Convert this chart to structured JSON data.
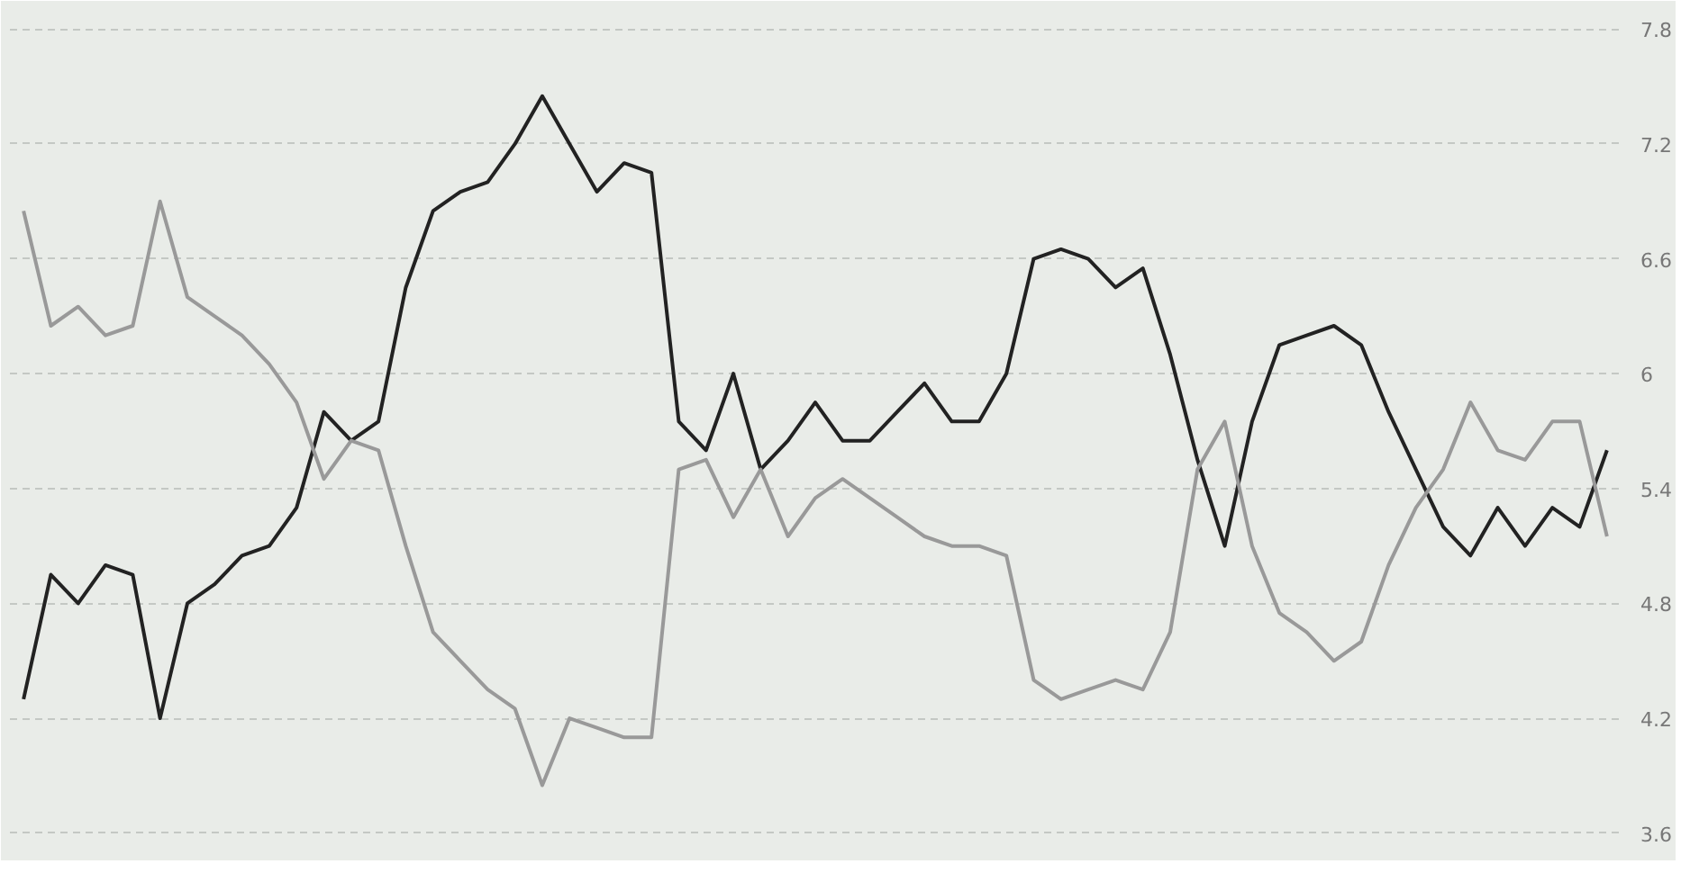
{
  "chart_data": {
    "type": "line",
    "categories": [
      null,
      null,
      null,
      null,
      null,
      null,
      null,
      null,
      null,
      null,
      null,
      null,
      null,
      null,
      null,
      null,
      null,
      null,
      null,
      null,
      null,
      null,
      null,
      null,
      null,
      null,
      null,
      null,
      null,
      null,
      null,
      null,
      null,
      null,
      null,
      null,
      null,
      null,
      null,
      null,
      null,
      null,
      null,
      null,
      null,
      null,
      null,
      null,
      null,
      null,
      null,
      null,
      null,
      null,
      null,
      null,
      null,
      null,
      null
    ],
    "series": [
      {
        "color": "#222222",
        "values": [
          4.3,
          4.95,
          4.8,
          5.0,
          4.95,
          4.2,
          4.8,
          4.9,
          5.05,
          5.1,
          5.3,
          5.8,
          5.65,
          5.75,
          6.45,
          6.85,
          6.95,
          7.0,
          7.2,
          7.45,
          7.2,
          6.95,
          7.1,
          7.05,
          5.75,
          5.6,
          6.0,
          5.5,
          5.65,
          5.85,
          5.65,
          5.65,
          5.8,
          5.95,
          5.75,
          5.75,
          6.0,
          6.6,
          6.65,
          6.6,
          6.45,
          6.55,
          6.1,
          5.55,
          5.1,
          5.75,
          6.15,
          6.2,
          6.25,
          6.15,
          5.8,
          5.5,
          5.2,
          5.05,
          5.3,
          5.1,
          5.3,
          5.2,
          5.6
        ]
      },
      {
        "color": "#999999",
        "values": [
          6.85,
          6.25,
          6.35,
          6.2,
          6.25,
          6.9,
          6.4,
          6.3,
          6.2,
          6.05,
          5.85,
          5.45,
          5.65,
          5.6,
          5.1,
          4.65,
          4.5,
          4.35,
          4.25,
          3.85,
          4.2,
          4.15,
          4.1,
          4.1,
          5.5,
          5.55,
          5.25,
          5.5,
          5.15,
          5.35,
          5.45,
          5.35,
          5.25,
          5.15,
          5.1,
          5.1,
          5.05,
          4.4,
          4.3,
          4.35,
          4.4,
          4.35,
          4.65,
          5.5,
          5.75,
          5.1,
          4.75,
          4.65,
          4.5,
          4.6,
          5.0,
          5.3,
          5.5,
          5.85,
          5.6,
          5.55,
          5.75,
          5.75,
          5.15
        ]
      }
    ],
    "ylim": [
      3.5,
      7.9
    ],
    "yticks": [
      3.6,
      4.2,
      4.8,
      6,
      5.4,
      6.6,
      7.2,
      7.8
    ],
    "grid": "y",
    "line_style": "solid"
  }
}
